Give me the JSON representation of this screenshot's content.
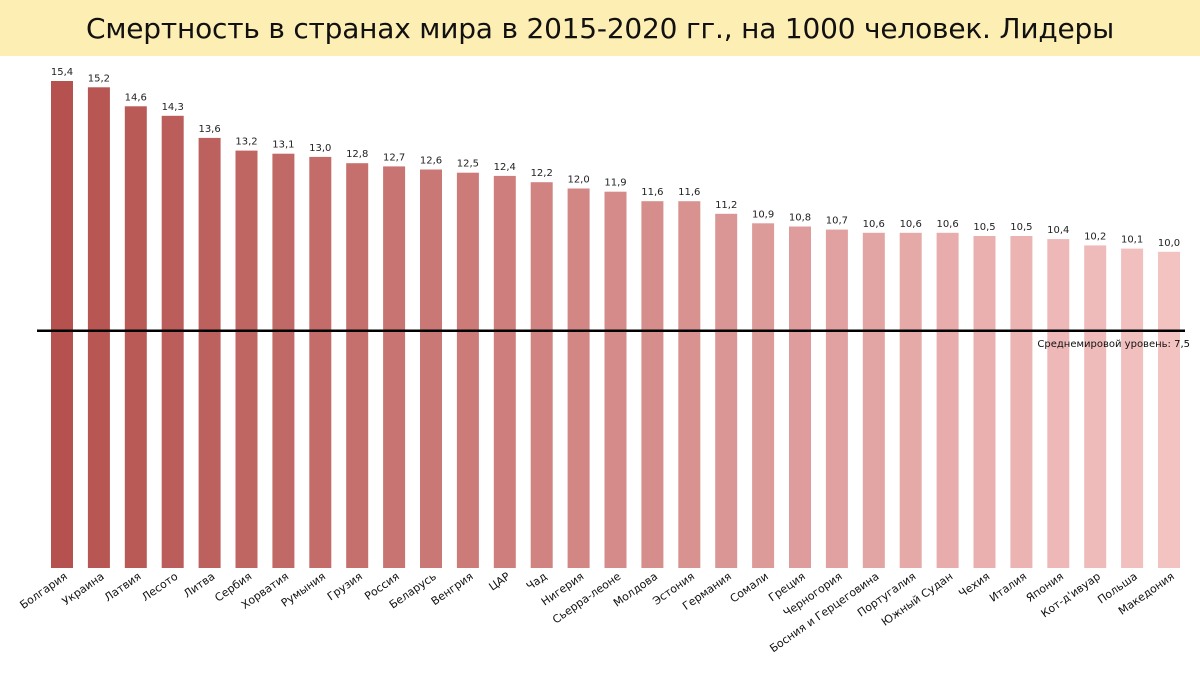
{
  "title": "Смертность в странах мира в 2015-2020 гг., на 1000 человек. Лидеры",
  "colors": {
    "title_background": "#fdeeb3",
    "bar_start": "#b5524f",
    "bar_end": "#f3c3c2",
    "reference_line": "#000000"
  },
  "chart_data": {
    "type": "bar",
    "categories": [
      "Болгария",
      "Украина",
      "Латвия",
      "Лесото",
      "Литва",
      "Сербия",
      "Хорватия",
      "Румыния",
      "Грузия",
      "Россия",
      "Беларусь",
      "Венгрия",
      "ЦАР",
      "Чад",
      "Нигерия",
      "Сьерра-леоне",
      "Молдова",
      "Эстония",
      "Германия",
      "Сомали",
      "Греция",
      "Черногория",
      "Босния и Герцеговина",
      "Португалия",
      "Южный Судан",
      "Чехия",
      "Италия",
      "Япония",
      "Кот-д'ивуар",
      "Польша",
      "Македония"
    ],
    "values": [
      15.4,
      15.2,
      14.6,
      14.3,
      13.6,
      13.2,
      13.1,
      13.0,
      12.8,
      12.7,
      12.6,
      12.5,
      12.4,
      12.2,
      12.0,
      11.9,
      11.6,
      11.6,
      11.2,
      10.9,
      10.8,
      10.7,
      10.6,
      10.6,
      10.6,
      10.5,
      10.5,
      10.4,
      10.2,
      10.1,
      10.0
    ],
    "value_labels": [
      "15,4",
      "15,2",
      "14,6",
      "14,3",
      "13,6",
      "13,2",
      "13,1",
      "13,0",
      "12,8",
      "12,7",
      "12,6",
      "12,5",
      "12,4",
      "12,2",
      "12,0",
      "11,9",
      "11,6",
      "11,6",
      "11,2",
      "10,9",
      "10,8",
      "10,7",
      "10,6",
      "10,6",
      "10,6",
      "10,5",
      "10,5",
      "10,4",
      "10,2",
      "10,1",
      "10,0"
    ],
    "reference_line": {
      "value": 7.5,
      "label": "Среднемировой уровень: 7,5"
    },
    "xlabel": "",
    "ylabel": "",
    "ylim": [
      0,
      15.4
    ],
    "grid": false,
    "legend": "none"
  }
}
